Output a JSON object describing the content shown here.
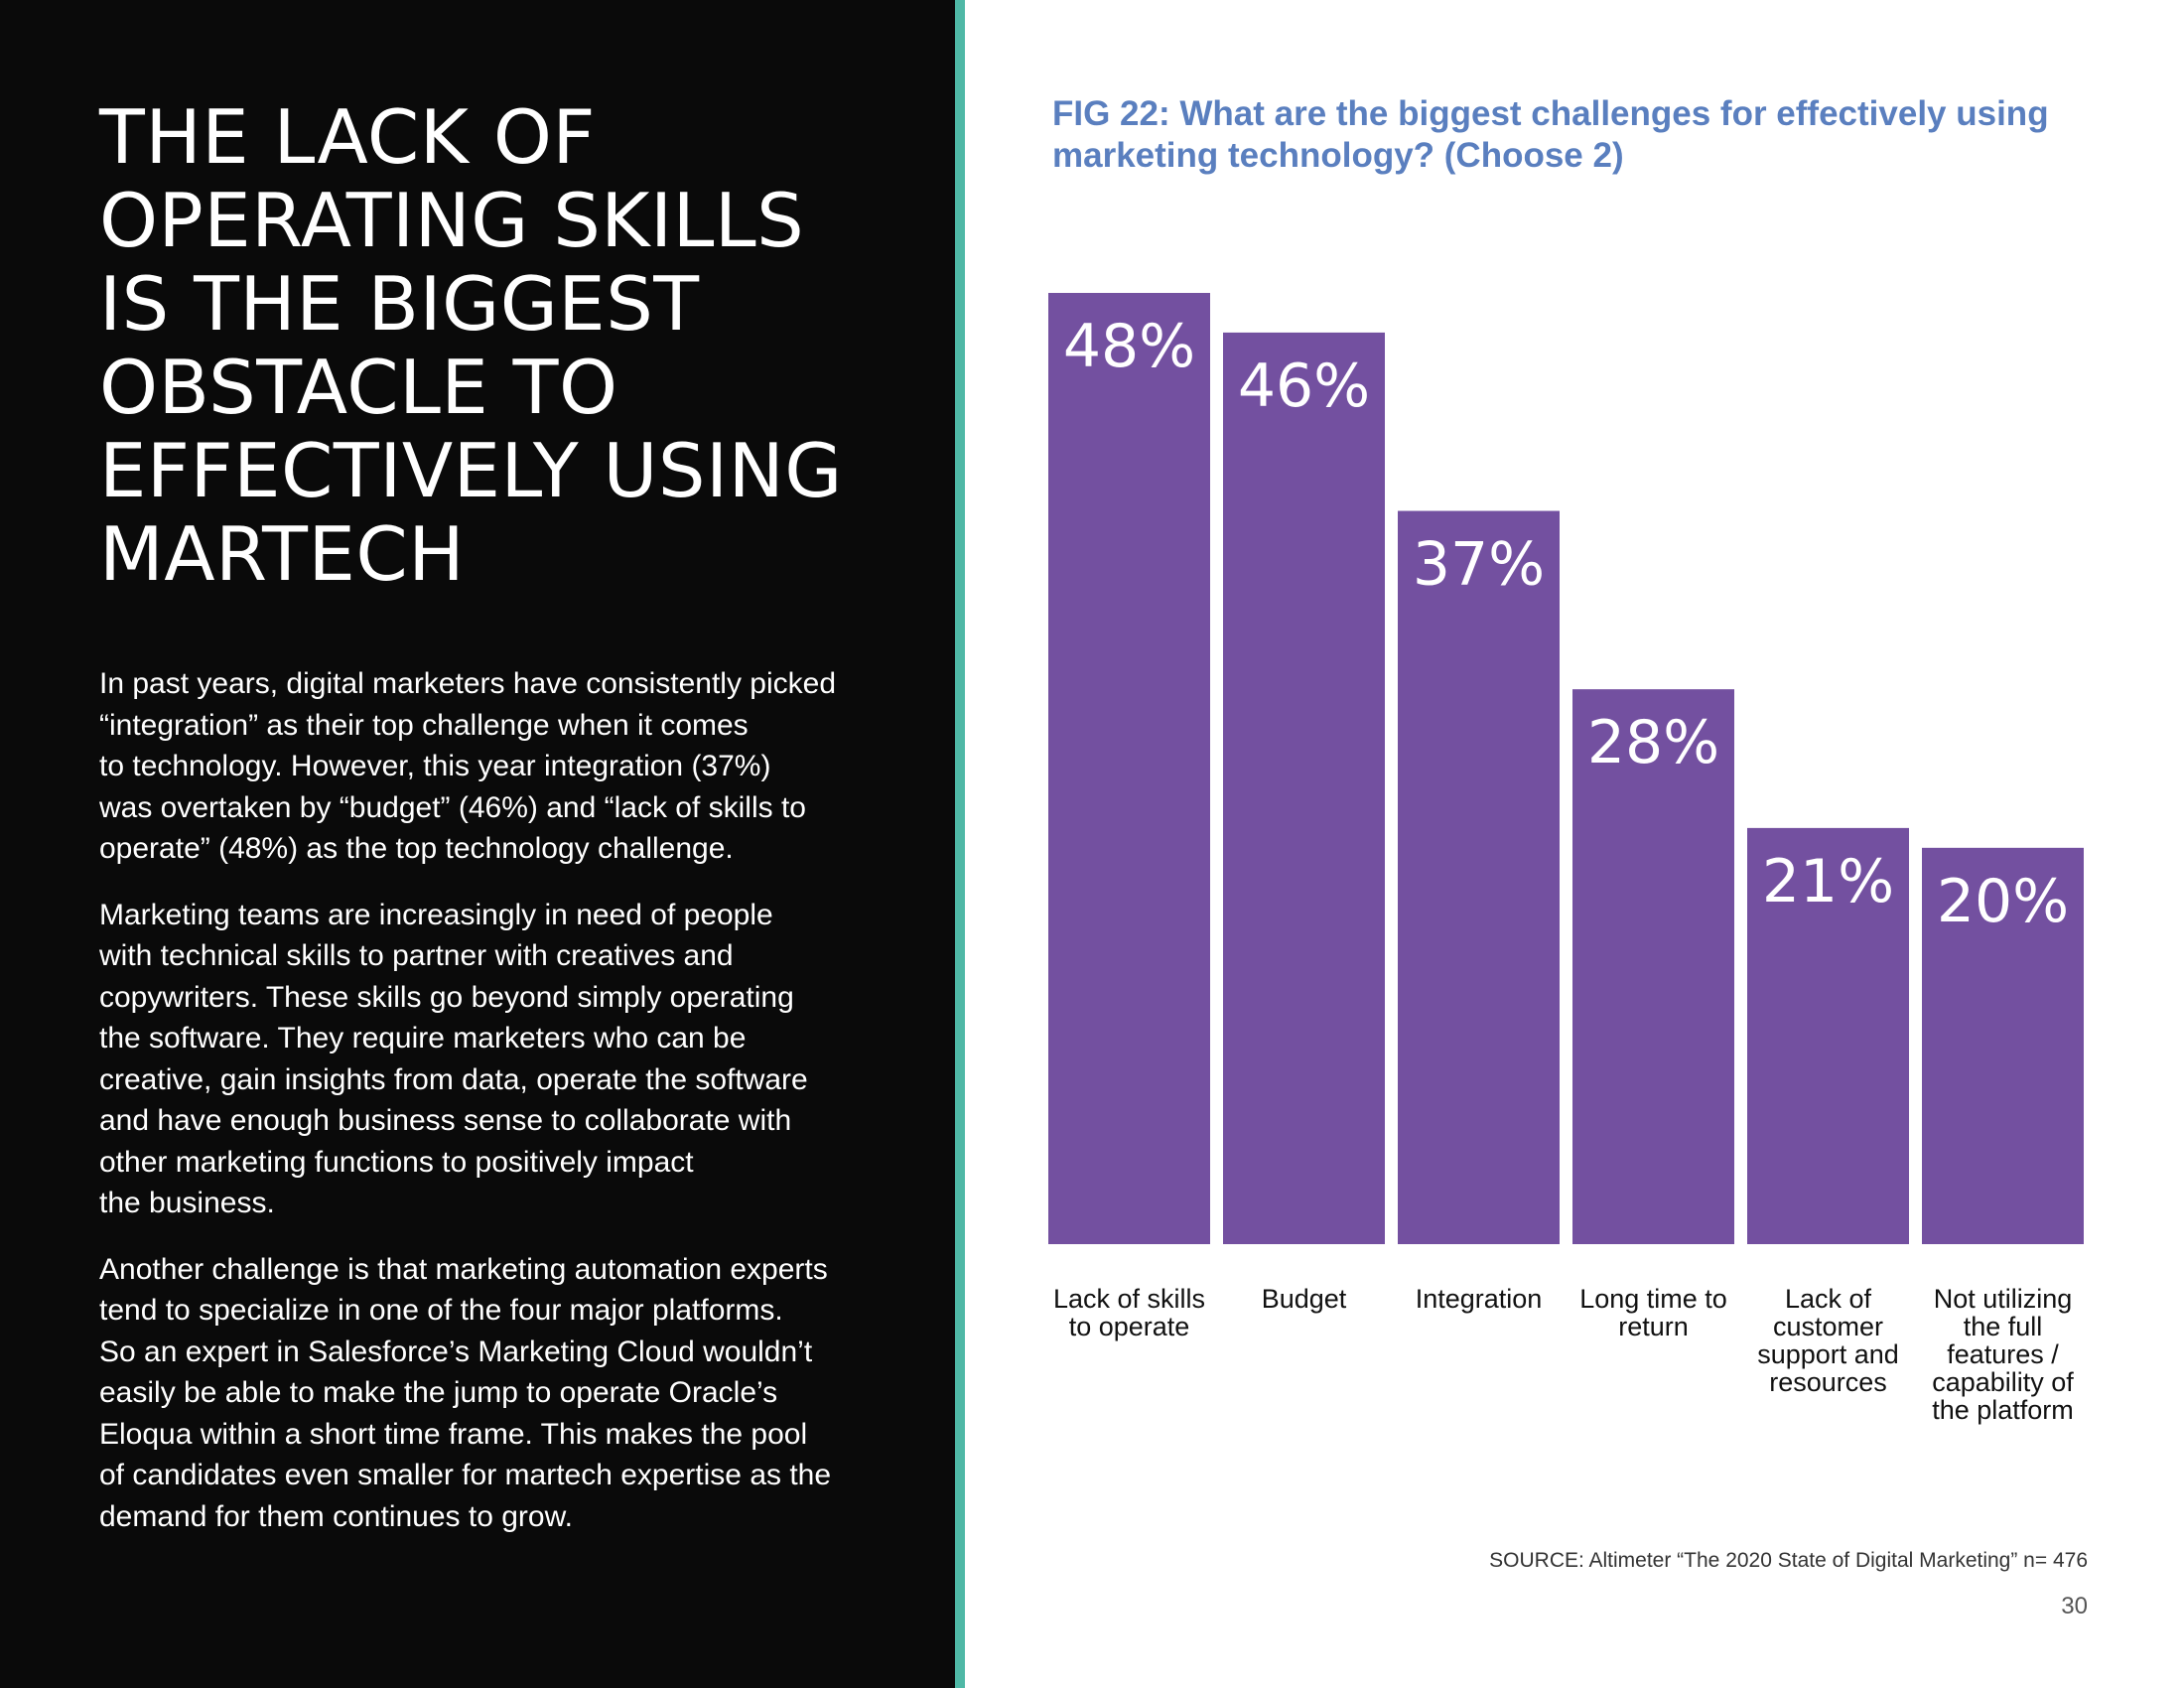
{
  "headline_lines": [
    "THE LACK OF",
    "OPERATING SKILLS",
    "IS THE BIGGEST",
    "OBSTACLE TO",
    "EFFECTIVELY USING",
    "MARTECH"
  ],
  "paragraphs": [
    [
      "In past years, digital marketers have consistently picked",
      "“integration” as their top challenge when it comes",
      "to technology. However, this year integration (37%)",
      "was overtaken by “budget” (46%) and “lack of skills to",
      "operate” (48%) as the top technology challenge."
    ],
    [
      "Marketing teams are increasingly in need of people",
      "with technical skills to partner with creatives and",
      "copywriters. These skills go beyond simply operating",
      "the software. They require marketers who can be",
      "creative, gain insights from data, operate the software",
      "and have enough business sense to collaborate with",
      "other marketing functions to positively impact",
      "the business."
    ],
    [
      "Another challenge is that marketing automation experts",
      "tend to specialize in one of the four major platforms.",
      "So an expert in Salesforce’s Marketing Cloud wouldn’t",
      "easily be able to make the jump to operate Oracle’s",
      "Eloqua within a short time frame. This makes the pool",
      "of candidates even smaller for martech expertise as the",
      "demand for them continues to grow."
    ]
  ],
  "source": "SOURCE: Altimeter “The 2020 State of Digital Marketing” n= 476",
  "page_number": "30",
  "colors": {
    "left_bg": "#0a0a0a",
    "divider": "#4fb8a6",
    "bar": "#7350a0",
    "title": "#5a7fbf"
  },
  "chart_data": {
    "type": "bar",
    "title_lines": [
      "FIG 22: What are the biggest challenges for effectively using",
      "marketing technology? (Choose 2)"
    ],
    "categories": [
      [
        "Lack of skills",
        "to operate"
      ],
      [
        "Budget"
      ],
      [
        "Integration"
      ],
      [
        "Long time to",
        "return"
      ],
      [
        "Lack of",
        "customer",
        "support and",
        "resources"
      ],
      [
        "Not utilizing",
        "the full",
        "features /",
        "capability of",
        "the platform"
      ]
    ],
    "values": [
      48,
      46,
      37,
      28,
      21,
      20
    ],
    "value_labels": [
      "48%",
      "46%",
      "37%",
      "28%",
      "21%",
      "20%"
    ],
    "ylim": [
      0,
      48
    ],
    "xlabel": "",
    "ylabel": "",
    "grid": false
  }
}
